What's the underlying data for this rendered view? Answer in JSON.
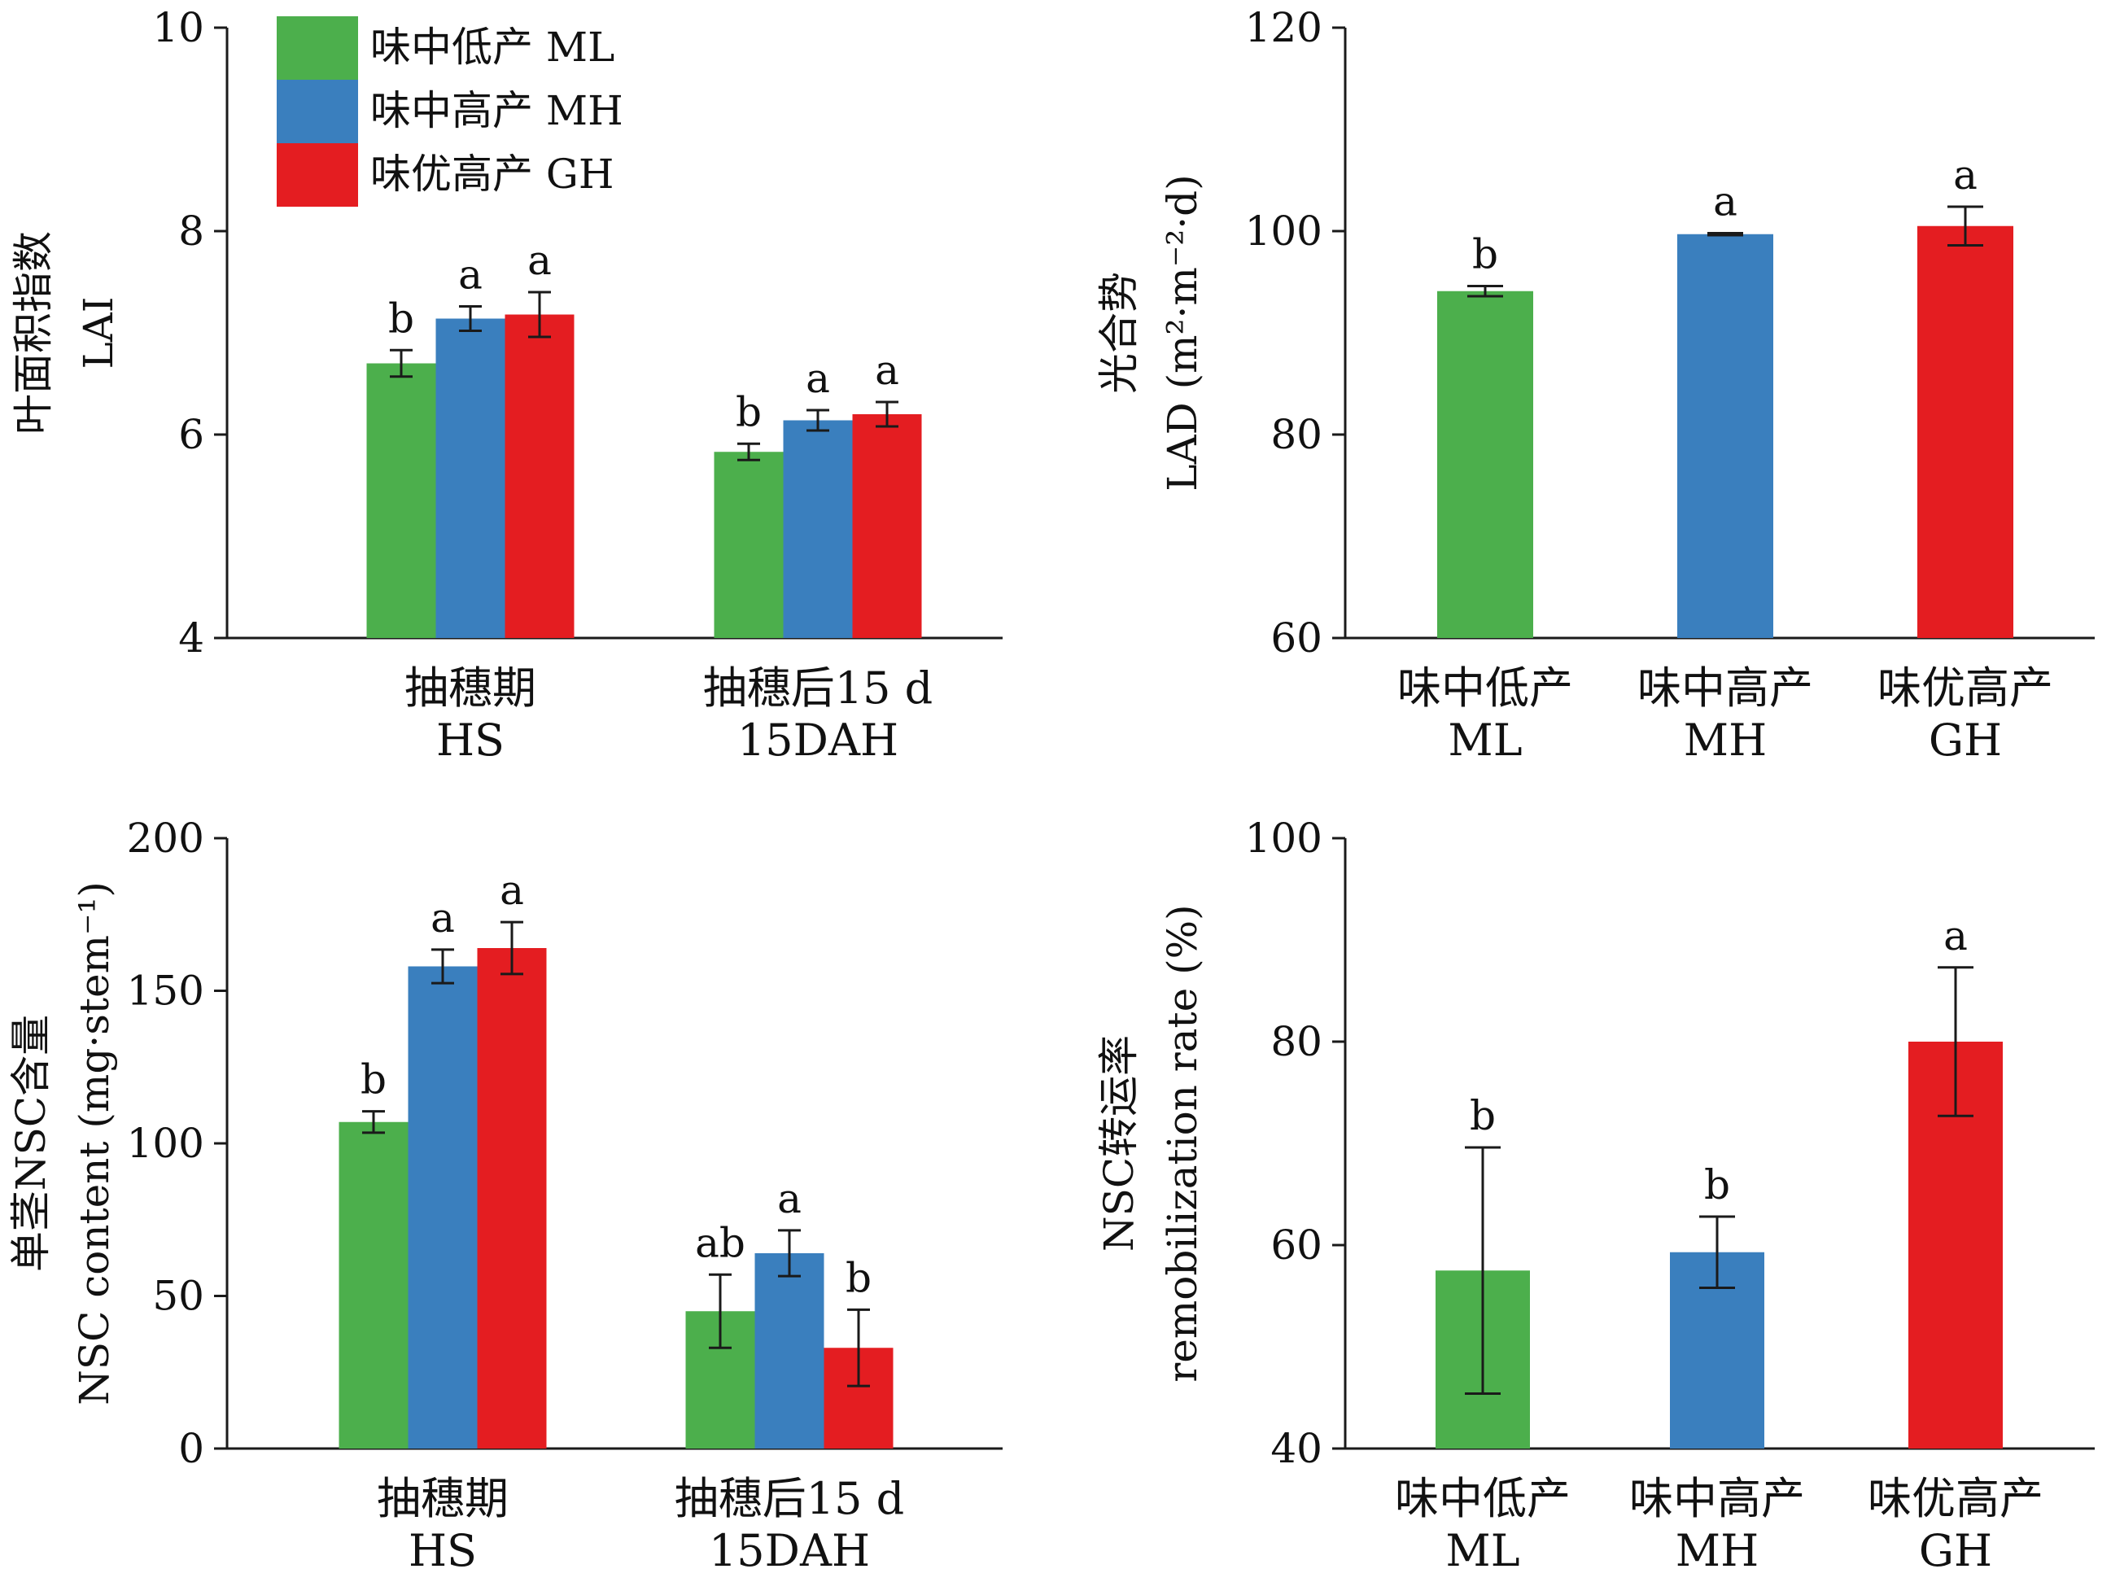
{
  "colors": {
    "ML": "#4caf4c",
    "MH": "#3a7fbe",
    "GH": "#e41d21",
    "axis": "#1a1a1a"
  },
  "legend": [
    {
      "key": "ML",
      "label": "味中低产  ML"
    },
    {
      "key": "MH",
      "label": "味中高产  MH"
    },
    {
      "key": "GH",
      "label": "味优高产  GH"
    }
  ],
  "chart_data": [
    {
      "id": "lai",
      "type": "bar",
      "ylabel": [
        "叶面积指数",
        "LAI"
      ],
      "ylim": [
        4,
        10
      ],
      "yticks": [
        4,
        6,
        8,
        10
      ],
      "categories": [
        [
          "抽穗期",
          "HS"
        ],
        [
          "抽穗后15 d",
          "15DAH"
        ]
      ],
      "series": [
        {
          "key": "ML",
          "values": [
            6.7,
            5.83
          ],
          "errors": [
            0.13,
            0.08
          ],
          "letters": [
            "b",
            "b"
          ]
        },
        {
          "key": "MH",
          "values": [
            7.14,
            6.14
          ],
          "errors": [
            0.12,
            0.1
          ],
          "letters": [
            "a",
            "a"
          ]
        },
        {
          "key": "GH",
          "values": [
            7.18,
            6.2
          ],
          "errors": [
            0.22,
            0.12
          ],
          "letters": [
            "a",
            "a"
          ]
        }
      ]
    },
    {
      "id": "lad",
      "type": "bar",
      "ylabel": [
        "光合势",
        "LAD (m²·m⁻²·d)"
      ],
      "ylim": [
        60,
        120
      ],
      "yticks": [
        60,
        80,
        100,
        120
      ],
      "categories": [
        [
          "味中低产",
          "ML"
        ],
        [
          "味中高产",
          "MH"
        ],
        [
          "味优高产",
          "GH"
        ]
      ],
      "series": [
        {
          "key": "single",
          "colorKeys": [
            "ML",
            "MH",
            "GH"
          ],
          "values": [
            94.1,
            99.7,
            100.5
          ],
          "errors": [
            0.5,
            0.1,
            1.9
          ],
          "letters": [
            "b",
            "a",
            "a"
          ]
        }
      ]
    },
    {
      "id": "nsc",
      "type": "bar",
      "ylabel": [
        "单茎NSC含量",
        "NSC content (mg·stem⁻¹)"
      ],
      "ylim": [
        0,
        200
      ],
      "yticks": [
        0,
        50,
        100,
        150,
        200
      ],
      "categories": [
        [
          "抽穗期",
          "HS"
        ],
        [
          "抽穗后15 d",
          "15DAH"
        ]
      ],
      "series": [
        {
          "key": "ML",
          "values": [
            107,
            45
          ],
          "errors": [
            3.5,
            12
          ],
          "letters": [
            "b",
            "ab"
          ]
        },
        {
          "key": "MH",
          "values": [
            158,
            64
          ],
          "errors": [
            5.5,
            7.5
          ],
          "letters": [
            "a",
            "a"
          ]
        },
        {
          "key": "GH",
          "values": [
            164,
            33
          ],
          "errors": [
            8.5,
            12.5
          ],
          "letters": [
            "a",
            "b"
          ]
        }
      ]
    },
    {
      "id": "remob",
      "type": "bar",
      "ylabel": [
        "NSC转运率",
        "remobilization rate (%)"
      ],
      "ylim": [
        40,
        100
      ],
      "yticks": [
        40,
        60,
        80,
        100
      ],
      "categories": [
        [
          "味中低产",
          "ML"
        ],
        [
          "味中高产",
          "MH"
        ],
        [
          "味优高产",
          "GH"
        ]
      ],
      "series": [
        {
          "key": "single",
          "colorKeys": [
            "ML",
            "MH",
            "GH"
          ],
          "values": [
            57.5,
            59.3,
            80
          ],
          "errors": [
            12.1,
            3.5,
            7.3
          ],
          "letters": [
            "b",
            "b",
            "a"
          ]
        }
      ]
    }
  ]
}
